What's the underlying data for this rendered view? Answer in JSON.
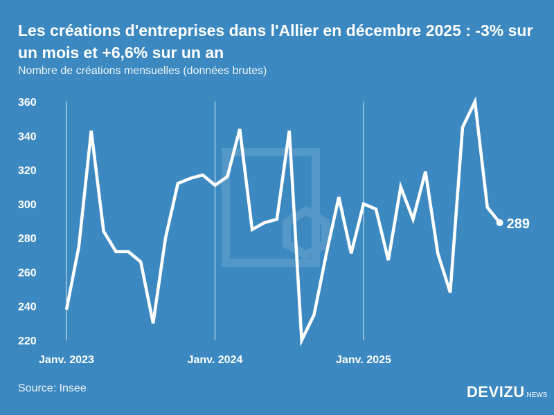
{
  "title": "Les créations d'entreprises dans l'Allier en décembre 2025 : -3% sur un mois et +6,6% sur un an",
  "subtitle": "Nombre de créations mensuelles (données brutes)",
  "source": "Source: Insee",
  "logo": {
    "main": "DEVIZU",
    "suffix": ".NEWS"
  },
  "colors": {
    "background": "#3b89c0",
    "line": "#ffffff"
  },
  "chart_data": {
    "type": "line",
    "title": "Les créations d'entreprises dans l'Allier en décembre 2025 : -3% sur un mois et +6,6% sur un an",
    "ylabel": "",
    "xlabel": "",
    "ylim": [
      220,
      360
    ],
    "yticks": [
      220,
      240,
      260,
      280,
      300,
      320,
      340,
      360
    ],
    "xtick_labels": [
      "Janv. 2023",
      "Janv. 2024",
      "Janv. 2025"
    ],
    "x": [
      "2023-01",
      "2023-02",
      "2023-03",
      "2023-04",
      "2023-05",
      "2023-06",
      "2023-07",
      "2023-08",
      "2023-09",
      "2023-10",
      "2023-11",
      "2023-12",
      "2024-01",
      "2024-02",
      "2024-03",
      "2024-04",
      "2024-05",
      "2024-06",
      "2024-07",
      "2024-08",
      "2024-09",
      "2024-10",
      "2024-11",
      "2024-12",
      "2025-01",
      "2025-02",
      "2025-03",
      "2025-04",
      "2025-05",
      "2025-06",
      "2025-07",
      "2025-08",
      "2025-09",
      "2025-10",
      "2025-11",
      "2025-12"
    ],
    "values": [
      238,
      275,
      343,
      284,
      272,
      272,
      266,
      230,
      280,
      312,
      315,
      317,
      311,
      316,
      344,
      285,
      289,
      291,
      343,
      220,
      235,
      271,
      304,
      271,
      300,
      297,
      267,
      310,
      291,
      319,
      271,
      248,
      345,
      360,
      298,
      289
    ],
    "last_label": "289",
    "grid": "vertical lines at January"
  }
}
